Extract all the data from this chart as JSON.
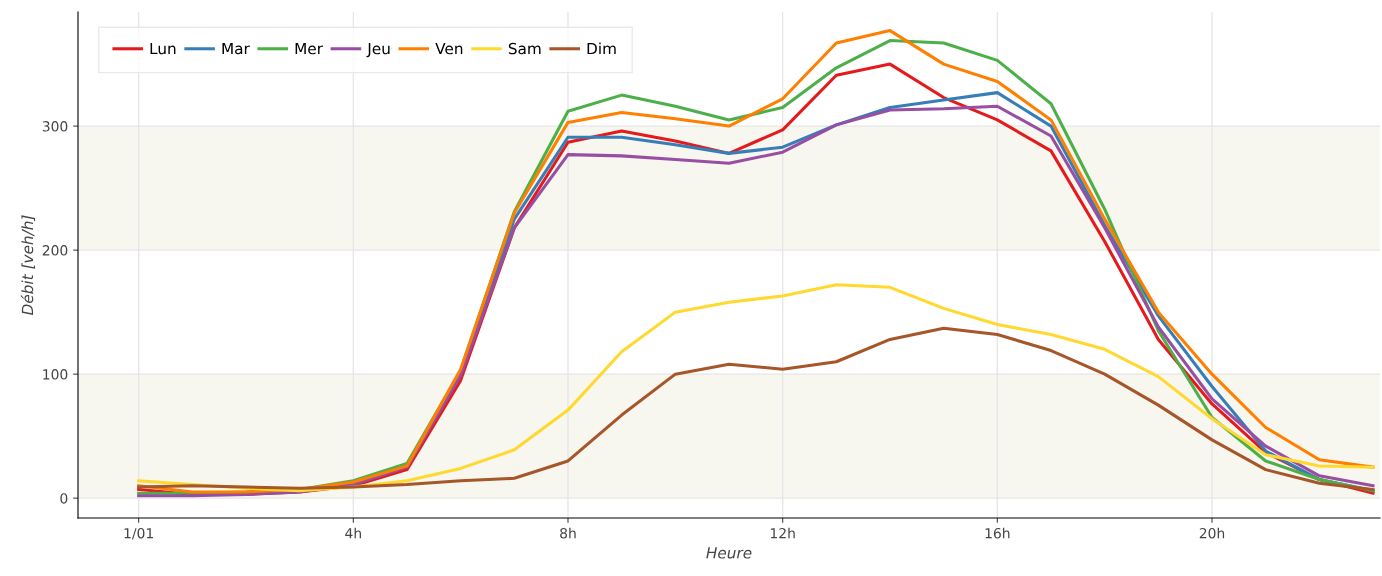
{
  "chart_data": {
    "type": "line",
    "xlabel": "Heure",
    "ylabel": "Débit [veh/h]",
    "x": [
      0,
      1,
      2,
      3,
      4,
      5,
      6,
      7,
      8,
      9,
      10,
      11,
      12,
      13,
      14,
      15,
      16,
      17,
      18,
      19,
      20,
      21,
      22,
      23
    ],
    "series": [
      {
        "name": "Lun",
        "color": "#e41a1c",
        "values": [
          7,
          3,
          3,
          5,
          10,
          23,
          95,
          218,
          287,
          296,
          288,
          278,
          297,
          341,
          350,
          323,
          305,
          280,
          207,
          128,
          76,
          37,
          15,
          4
        ]
      },
      {
        "name": "Mar",
        "color": "#377eb8",
        "values": [
          null,
          null,
          null,
          null,
          null,
          null,
          100,
          225,
          291,
          291,
          285,
          278,
          283,
          301,
          315,
          321,
          327,
          300,
          220,
          147,
          90,
          38,
          15,
          6
        ]
      },
      {
        "name": "Mer",
        "color": "#4daf4a",
        "values": [
          4,
          4,
          5,
          7,
          14,
          28,
          103,
          231,
          312,
          325,
          316,
          305,
          315,
          347,
          369,
          367,
          353,
          318,
          233,
          135,
          65,
          30,
          15,
          6
        ]
      },
      {
        "name": "Jeu",
        "color": "#984ea3",
        "values": [
          2,
          2,
          3,
          5,
          11,
          25,
          99,
          218,
          277,
          276,
          273,
          270,
          279,
          301,
          313,
          314,
          316,
          292,
          218,
          138,
          80,
          42,
          18,
          10
        ]
      },
      {
        "name": "Ven",
        "color": "#ff7f00",
        "values": [
          10,
          5,
          5,
          7,
          13,
          26,
          104,
          230,
          303,
          311,
          306,
          300,
          322,
          367,
          377,
          350,
          336,
          305,
          225,
          150,
          100,
          57,
          31,
          25
        ]
      },
      {
        "name": "Sam",
        "color": "#ffd92f",
        "values": [
          14,
          11,
          8,
          6,
          9,
          14,
          24,
          39,
          71,
          118,
          150,
          158,
          163,
          172,
          170,
          153,
          140,
          132,
          120,
          98,
          64,
          35,
          26,
          25
        ]
      },
      {
        "name": "Dim",
        "color": "#a65628",
        "values": [
          9,
          10,
          9,
          8,
          9,
          11,
          14,
          16,
          30,
          67,
          100,
          108,
          104,
          110,
          128,
          137,
          132,
          119,
          100,
          75,
          47,
          23,
          12,
          7
        ]
      }
    ],
    "xlim": [
      -1.13,
      23.13
    ],
    "ylim": [
      -16,
      392
    ],
    "xticks": [
      {
        "value": 0,
        "label": "1/01"
      },
      {
        "value": 4,
        "label": "4h"
      },
      {
        "value": 8,
        "label": "8h"
      },
      {
        "value": 12,
        "label": "12h"
      },
      {
        "value": 16,
        "label": "16h"
      },
      {
        "value": 20,
        "label": "20h"
      }
    ],
    "yticks": [
      0,
      100,
      200,
      300
    ],
    "bands": [
      {
        "axis": "y",
        "from": 0,
        "to": 100,
        "color": "#f7f6ef"
      },
      {
        "axis": "y",
        "from": 200,
        "to": 300,
        "color": "#f7f6ef"
      }
    ],
    "grid": true,
    "legend": "top left",
    "marker": "none",
    "line_style": "solid"
  }
}
